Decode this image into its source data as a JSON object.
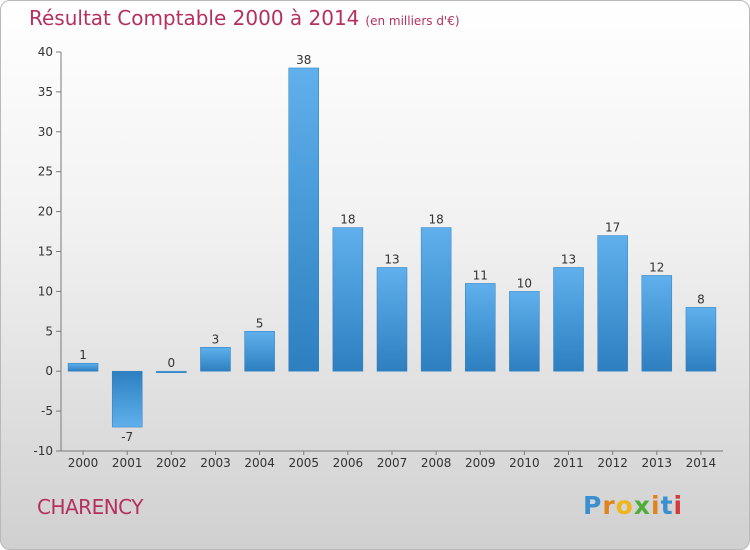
{
  "header": {
    "title": "Résultat Comptable 2000 à 2014",
    "subtitle": "(en milliers d'€)"
  },
  "footer": {
    "city": "CHARENCY",
    "logo_text": "Proxiti",
    "logo_colors": [
      "#3a8fd1",
      "#e0831d",
      "#f0b51c",
      "#4fae3a",
      "#e0831d",
      "#3a8fd1",
      "#d53a3a"
    ]
  },
  "colors": {
    "title": "#b5305f",
    "bar_light": "#5fb0ec",
    "bar_dark": "#2e7fc0"
  },
  "chart_data": {
    "type": "bar",
    "categories": [
      "2000",
      "2001",
      "2002",
      "2003",
      "2004",
      "2005",
      "2006",
      "2007",
      "2008",
      "2009",
      "2010",
      "2011",
      "2012",
      "2013",
      "2014"
    ],
    "values": [
      1,
      -7,
      0,
      3,
      5,
      38,
      18,
      13,
      18,
      11,
      10,
      13,
      17,
      12,
      8
    ],
    "title": "Résultat Comptable 2000 à 2014",
    "subtitle": "(en milliers d'€)",
    "xlabel": "",
    "ylabel": "",
    "ylim": [
      -10,
      40
    ],
    "yticks": [
      -10,
      -5,
      0,
      5,
      10,
      15,
      20,
      25,
      30,
      35,
      40
    ],
    "grid": false,
    "legend": "none"
  }
}
